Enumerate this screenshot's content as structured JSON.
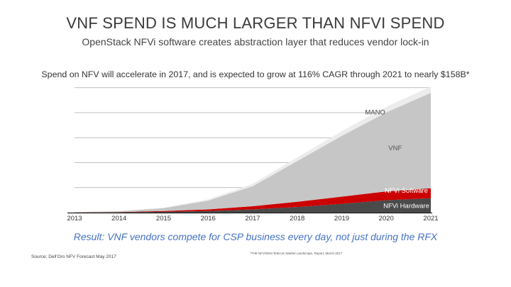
{
  "title": "VNF SPEND IS MUCH LARGER THAN NFVI SPEND",
  "subtitle": "OpenStack NFVi software creates abstraction layer that reduces vendor lock-in",
  "lead": "Spend on NFV will accelerate in 2017, and is expected to grow at 116% CAGR through 2021 to nearly $158B*",
  "result": "Result: VNF vendors compete for CSP business every day, not just during the RFX",
  "source": "Source: Dell'Oro NFV Forecast May 2017",
  "footnote": "*THE NFV/SDN Telecom Market Landscape, Report, March 2017",
  "colors": {
    "title": "#3a3a3a",
    "result": "#4472c4",
    "mano": "#ececec",
    "vnf": "#c6c6c6",
    "nfvi_software": "#cc0000",
    "nfvi_hardware": "#4a4a4a",
    "grid": "#aaaaaa",
    "axis": "#222222"
  },
  "chart_data": {
    "type": "area",
    "stacked": true,
    "x": [
      2013,
      2014,
      2015,
      2016,
      2017,
      2018,
      2019,
      2020,
      2021
    ],
    "tick_labels": [
      "2013",
      "2014",
      "2015",
      "2016",
      "2017",
      "2018",
      "2019",
      "2020",
      "2021"
    ],
    "xlim": [
      2013,
      2021
    ],
    "ylim": [
      0,
      158
    ],
    "grid": true,
    "series": [
      {
        "name": "NFVi Hardware",
        "label": "NFVi Hardware",
        "color": "#4a4a4a",
        "values": [
          0.2,
          0.4,
          1.0,
          2.0,
          4.0,
          7.0,
          11.0,
          15.5,
          18.0
        ]
      },
      {
        "name": "NFVi Software",
        "label": "NFVi Software",
        "color": "#cc0000",
        "values": [
          0.1,
          0.3,
          1.0,
          2.0,
          4.0,
          6.5,
          9.0,
          11.0,
          12.5
        ]
      },
      {
        "name": "VNF",
        "label": "VNF",
        "color": "#c6c6c6",
        "values": [
          0.3,
          1.0,
          3.5,
          11.0,
          25.0,
          51.0,
          76.0,
          99.0,
          119.5
        ]
      },
      {
        "name": "MANO",
        "label": "MANO",
        "color": "#ececec",
        "values": [
          0.1,
          0.2,
          0.6,
          1.5,
          3.0,
          4.5,
          6.0,
          7.0,
          8.0
        ]
      }
    ]
  }
}
